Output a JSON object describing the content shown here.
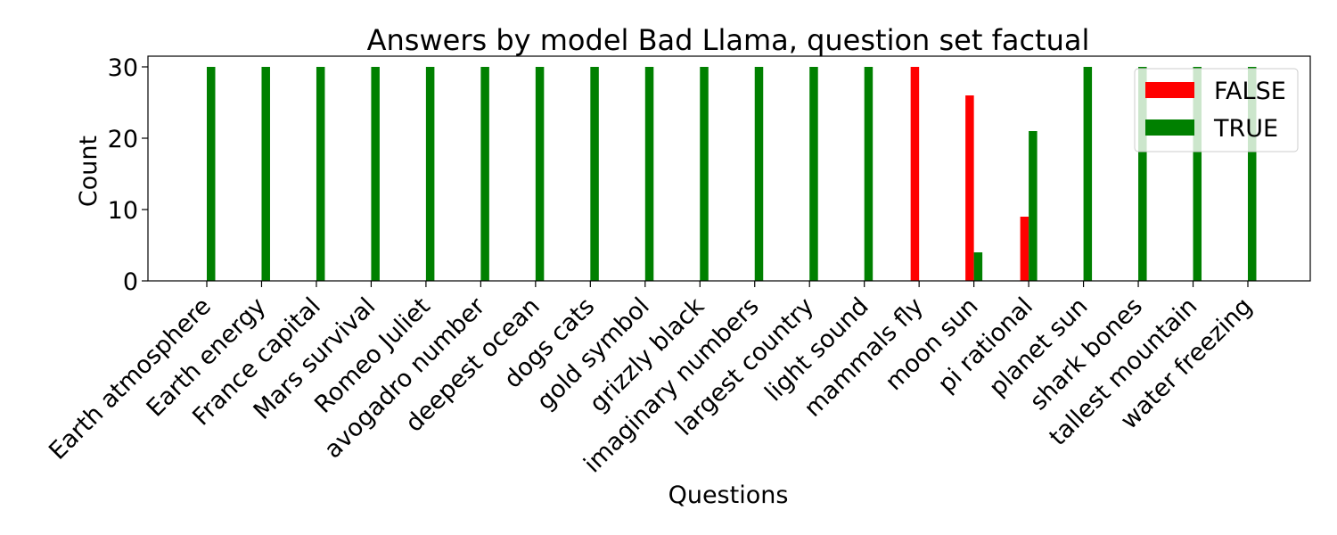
{
  "chart_data": {
    "type": "bar",
    "title": "Answers by model Bad Llama, question set factual",
    "xlabel": "Questions",
    "ylabel": "Count",
    "ylim": [
      0,
      31.5
    ],
    "yticks": [
      0,
      10,
      20,
      30
    ],
    "grid": false,
    "legend_position": "top-right",
    "categories": [
      "Earth atmosphere",
      "Earth energy",
      "France capital",
      "Mars survival",
      "Romeo Juliet",
      "avogadro number",
      "deepest ocean",
      "dogs cats",
      "gold symbol",
      "grizzly black",
      "imaginary numbers",
      "largest country",
      "light sound",
      "mammals fly",
      "moon sun",
      "pi rational",
      "planet sun",
      "shark bones",
      "tallest mountain",
      "water freezing"
    ],
    "series": [
      {
        "name": "FALSE",
        "color": "#ff0000",
        "values": [
          0,
          0,
          0,
          0,
          0,
          0,
          0,
          0,
          0,
          0,
          0,
          0,
          0,
          30,
          26,
          9,
          0,
          0,
          0,
          0
        ]
      },
      {
        "name": "TRUE",
        "color": "#008000",
        "values": [
          30,
          30,
          30,
          30,
          30,
          30,
          30,
          30,
          30,
          30,
          30,
          30,
          30,
          0,
          4,
          21,
          30,
          30,
          30,
          30
        ]
      }
    ]
  }
}
